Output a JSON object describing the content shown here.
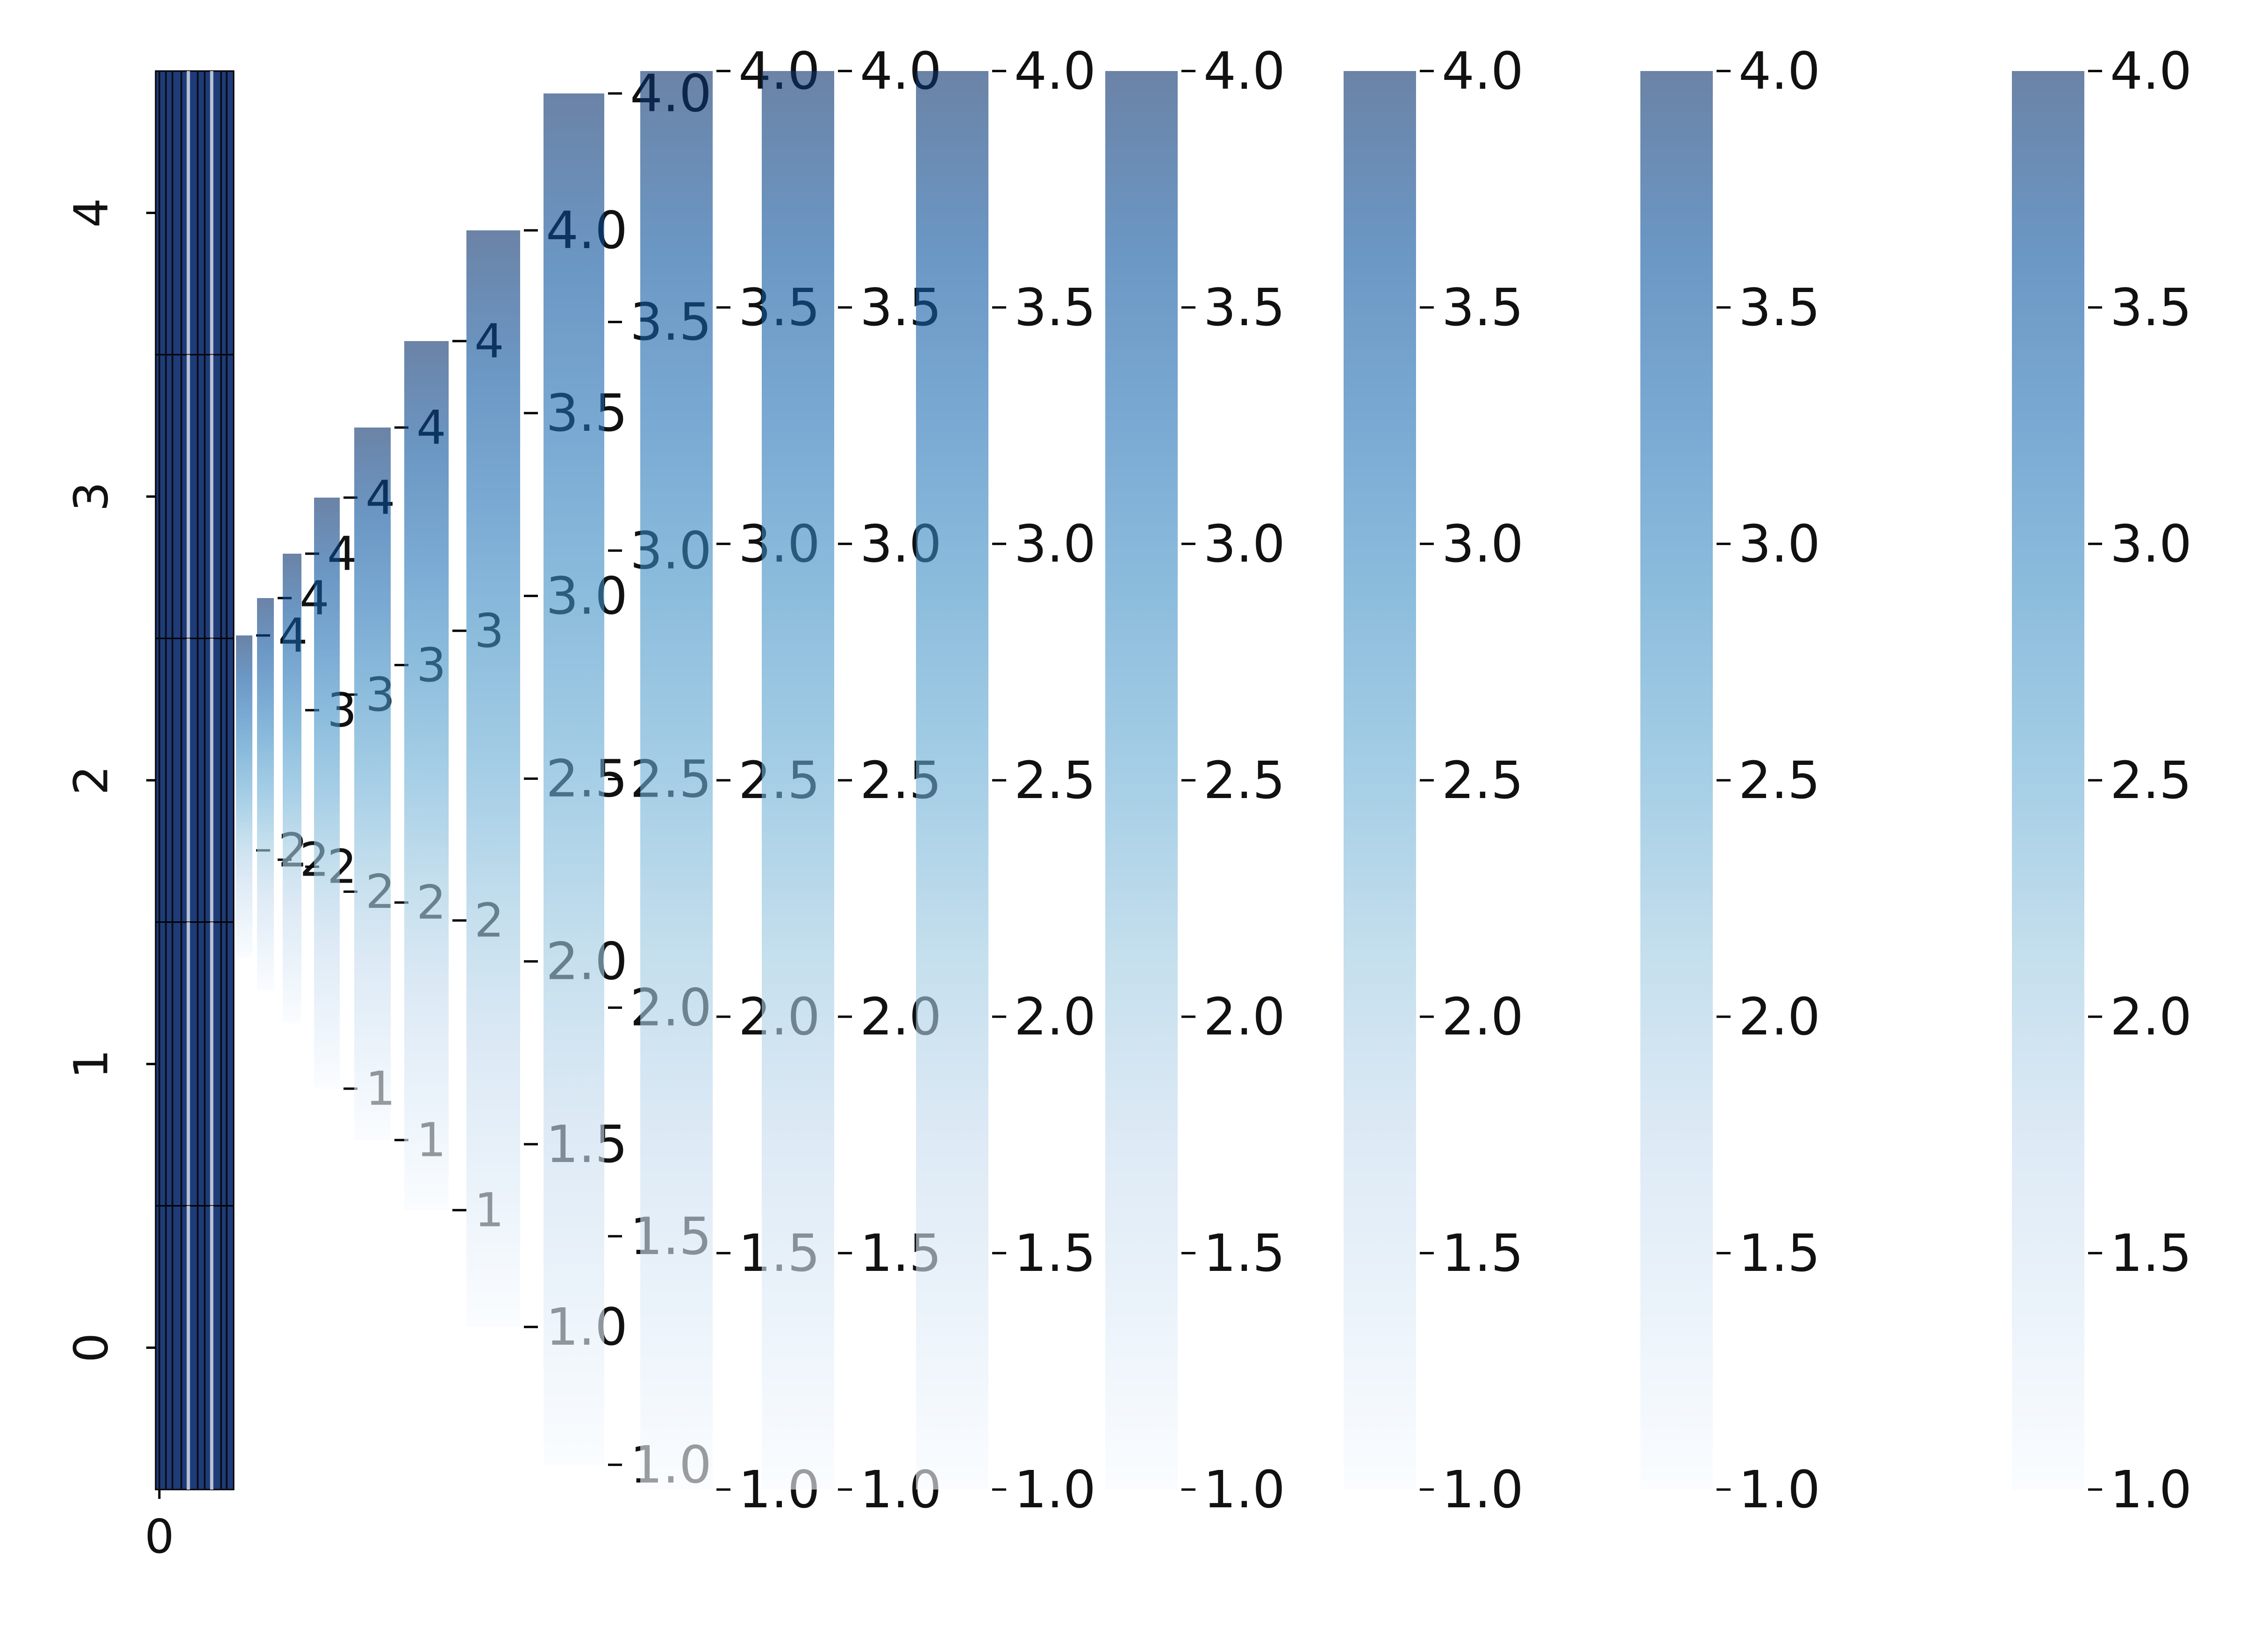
{
  "chart_data": [
    {
      "type": "heatmap",
      "title": "",
      "xlabel": "",
      "ylabel": "",
      "x_tick_labels": [
        "0"
      ],
      "y_tick_labels": [
        "0",
        "1",
        "2",
        "3",
        "4"
      ],
      "rows": 5,
      "columns": 1,
      "cell_colors_top_to_bottom": [
        "#1f3c78",
        "#1f3c78",
        "#1f3c78",
        "#1f3c78",
        "#1f3c78"
      ],
      "grid": true
    },
    {
      "type": "heatmap",
      "role": "colorbar",
      "ticks": [
        2,
        4
      ],
      "tick_labels": [
        "2",
        "4"
      ]
    },
    {
      "type": "heatmap",
      "role": "colorbar",
      "ticks": [
        2,
        4
      ],
      "tick_labels": [
        "2",
        "4"
      ]
    },
    {
      "type": "heatmap",
      "role": "colorbar",
      "ticks": [
        2,
        3,
        4
      ],
      "tick_labels": [
        "2",
        "3",
        "4"
      ]
    },
    {
      "type": "heatmap",
      "role": "colorbar",
      "ticks": [
        1,
        2,
        3,
        4
      ],
      "tick_labels": [
        "1",
        "2",
        "3",
        "4"
      ]
    },
    {
      "type": "heatmap",
      "role": "colorbar",
      "ticks": [
        1,
        2,
        3,
        4
      ],
      "tick_labels": [
        "1",
        "2",
        "3",
        "4"
      ]
    },
    {
      "type": "heatmap",
      "role": "colorbar",
      "ticks": [
        1,
        2,
        3,
        4
      ],
      "tick_labels": [
        "1",
        "2",
        "3",
        "4"
      ]
    },
    {
      "type": "heatmap",
      "role": "colorbar",
      "ticks": [
        1.0,
        1.5,
        2.0,
        2.5,
        3.0,
        3.5,
        4.0
      ],
      "tick_labels": [
        "1.0",
        "1.5",
        "2.0",
        "2.5",
        "3.0",
        "3.5",
        "4.0"
      ]
    },
    {
      "type": "heatmap",
      "role": "colorbar",
      "ticks": [
        1.0,
        1.5,
        2.0,
        2.5,
        3.0,
        3.5,
        4.0
      ],
      "tick_labels": [
        "1.0",
        "1.5",
        "2.0",
        "2.5",
        "3.0",
        "3.5",
        "4.0"
      ]
    },
    {
      "type": "heatmap",
      "role": "colorbar",
      "ticks": [
        1.0,
        1.5,
        2.0,
        2.5,
        3.0,
        3.5,
        4.0
      ],
      "tick_labels": [
        "1.0",
        "1.5",
        "2.0",
        "2.5",
        "3.0",
        "3.5",
        "4.0"
      ]
    },
    {
      "type": "heatmap",
      "role": "colorbar",
      "ticks": [
        1.0,
        1.5,
        2.0,
        2.5,
        3.0,
        3.5,
        4.0
      ],
      "tick_labels": [
        "1.0",
        "1.5",
        "2.0",
        "2.5",
        "3.0",
        "3.5",
        "4.0"
      ]
    },
    {
      "type": "heatmap",
      "role": "colorbar",
      "ticks": [
        1.0,
        1.5,
        2.0,
        2.5,
        3.0,
        3.5,
        4.0
      ],
      "tick_labels": [
        "1.0",
        "1.5",
        "2.0",
        "2.5",
        "3.0",
        "3.5",
        "4.0"
      ]
    },
    {
      "type": "heatmap",
      "role": "colorbar",
      "ticks": [
        1.0,
        1.5,
        2.0,
        2.5,
        3.0,
        3.5,
        4.0
      ],
      "tick_labels": [
        "1.0",
        "1.5",
        "2.0",
        "2.5",
        "3.0",
        "3.5",
        "4.0"
      ]
    },
    {
      "type": "heatmap",
      "role": "colorbar",
      "ticks": [
        1.0,
        1.5,
        2.0,
        2.5,
        3.0,
        3.5,
        4.0
      ],
      "tick_labels": [
        "1.0",
        "1.5",
        "2.0",
        "2.5",
        "3.0",
        "3.5",
        "4.0"
      ]
    },
    {
      "type": "heatmap",
      "role": "colorbar",
      "ticks": [
        1.0,
        1.5,
        2.0,
        2.5,
        3.0,
        3.5,
        4.0
      ],
      "tick_labels": [
        "1.0",
        "1.5",
        "2.0",
        "2.5",
        "3.0",
        "3.5",
        "4.0"
      ]
    },
    {
      "type": "heatmap",
      "role": "colorbar",
      "ticks": [
        1.0,
        1.5,
        2.0,
        2.5,
        3.0,
        3.5,
        4.0
      ],
      "tick_labels": [
        "1.0",
        "1.5",
        "2.0",
        "2.5",
        "3.0",
        "3.5",
        "4.0"
      ]
    }
  ],
  "colormap": {
    "name": "Blues",
    "alpha": 0.6,
    "stops": [
      "#f7fbff",
      "#deebf7",
      "#c6dbef",
      "#9ecae1",
      "#6baed6",
      "#4292c6",
      "#2171b5",
      "#08519c",
      "#08306b"
    ],
    "vmin": 1.0,
    "vmax": 4.0
  }
}
